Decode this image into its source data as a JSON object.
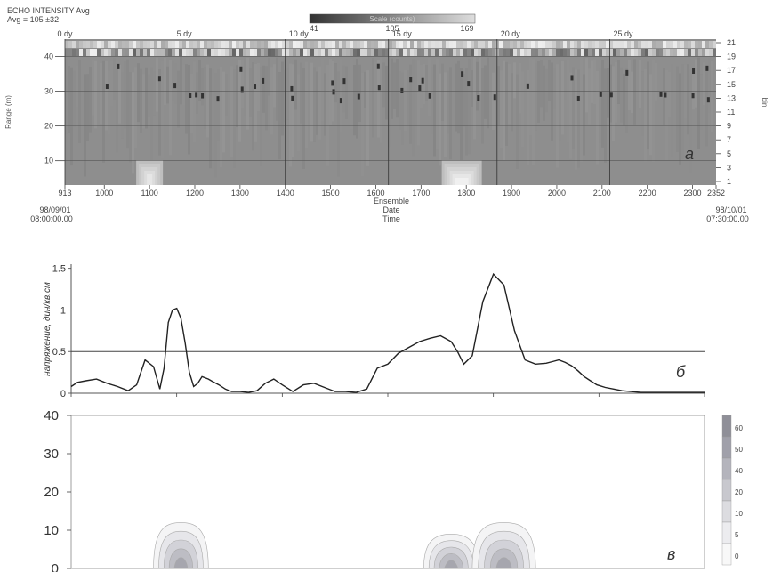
{
  "chart_data": [
    {
      "type": "heatmap",
      "title": "ECHO INTENSITY Avg",
      "subtitle": "Avg = 105 ±32",
      "scale": {
        "label": "Scale (counts)",
        "min": "41",
        "mid": "105",
        "max": "169"
      },
      "top_ticks": [
        "0 dy",
        "5 dy",
        "10 dy",
        "15 dy",
        "20 dy",
        "25 dy"
      ],
      "top_tick_values": [
        913,
        1152,
        1400,
        1628,
        1868,
        2117
      ],
      "ylabel": "Range (m)",
      "yticks": [
        "10",
        "20",
        "30",
        "40"
      ],
      "right_ticks": [
        "1",
        "3",
        "5",
        "7",
        "9",
        "11",
        "13",
        "15",
        "17",
        "19",
        "21"
      ],
      "right_label": "bin",
      "x_ticks": [
        "913",
        "1000",
        "1100",
        "1200",
        "1300",
        "1400",
        "1500",
        "1600",
        "1700",
        "1800",
        "1900",
        "2000",
        "2100",
        "2200",
        "2300",
        "2352"
      ],
      "x_range": [
        913,
        2352
      ],
      "x_label_lines": [
        "Ensemble",
        "Date",
        "Time"
      ],
      "start_label": {
        "date": "98/09/01",
        "time": "08:00:00.00"
      },
      "end_label": {
        "date": "98/10/01",
        "time": "07:30:00.00"
      },
      "panel_letter": "а"
    },
    {
      "type": "line",
      "ylabel": "напряжение, дин/кв.см",
      "yticks": [
        "0",
        "0.5",
        "1",
        "1.5"
      ],
      "ylim": [
        0,
        1.55
      ],
      "xlim": [
        0,
        30
      ],
      "threshold": 0.5,
      "series": [
        {
          "x": [
            0,
            0.3,
            0.7,
            1.2,
            1.7,
            2.2,
            2.7,
            3.1,
            3.5,
            3.9,
            4.2,
            4.4,
            4.6,
            4.8,
            5.0,
            5.2,
            5.4,
            5.6,
            5.8,
            6.0,
            6.2,
            6.5,
            6.7,
            7.0,
            7.3,
            7.6,
            8.0,
            8.4,
            8.8,
            9.2,
            9.6,
            10.0,
            10.5,
            11.0,
            11.5,
            12.0,
            12.5,
            13.0,
            13.5,
            14.0,
            14.5,
            15.0,
            15.5,
            16.0,
            16.5,
            17.0,
            17.5,
            18.0,
            18.3,
            18.6,
            19.0,
            19.5,
            20.0,
            20.5,
            21.0,
            21.5,
            22.0,
            22.5,
            22.8,
            23.1,
            23.4,
            23.7,
            24.0,
            24.3,
            24.6,
            24.9,
            25.3,
            25.7,
            26.1,
            26.5,
            27.0,
            27.5,
            28.0,
            28.5,
            29.0,
            29.5,
            30.0
          ],
          "y": [
            0.08,
            0.13,
            0.15,
            0.17,
            0.12,
            0.08,
            0.03,
            0.1,
            0.4,
            0.32,
            0.05,
            0.3,
            0.85,
            1.0,
            1.02,
            0.9,
            0.6,
            0.25,
            0.08,
            0.12,
            0.2,
            0.17,
            0.14,
            0.1,
            0.05,
            0.02,
            0.02,
            0.01,
            0.03,
            0.12,
            0.17,
            0.1,
            0.02,
            0.1,
            0.12,
            0.07,
            0.02,
            0.02,
            0.01,
            0.05,
            0.3,
            0.35,
            0.48,
            0.55,
            0.62,
            0.66,
            0.69,
            0.62,
            0.5,
            0.35,
            0.45,
            1.1,
            1.43,
            1.3,
            0.75,
            0.4,
            0.35,
            0.36,
            0.38,
            0.4,
            0.37,
            0.33,
            0.27,
            0.2,
            0.15,
            0.1,
            0.07,
            0.05,
            0.03,
            0.02,
            0.01,
            0.01,
            0.01,
            0.01,
            0.01,
            0.01,
            0.01
          ]
        }
      ],
      "panel_letter": "б"
    },
    {
      "type": "area",
      "yticks": [
        "0",
        "10",
        "20",
        "30",
        "40"
      ],
      "ylim": [
        0,
        40
      ],
      "xlim": [
        0,
        30
      ],
      "legend_levels": [
        "60",
        "50",
        "40",
        "20",
        "10",
        "5",
        "0"
      ],
      "legend_colors": [
        "#8f8f98",
        "#a0a0aa",
        "#b4b4bc",
        "#c8c8ce",
        "#dcdce0",
        "#ececef",
        "#f8f8f8"
      ],
      "blobs": [
        {
          "x_center": 5.2,
          "peak": 12,
          "width": 1.3
        },
        {
          "x_center": 18.0,
          "peak": 9,
          "width": 1.3
        },
        {
          "x_center": 20.5,
          "peak": 12,
          "width": 1.5
        }
      ],
      "panel_letter": "в"
    }
  ]
}
